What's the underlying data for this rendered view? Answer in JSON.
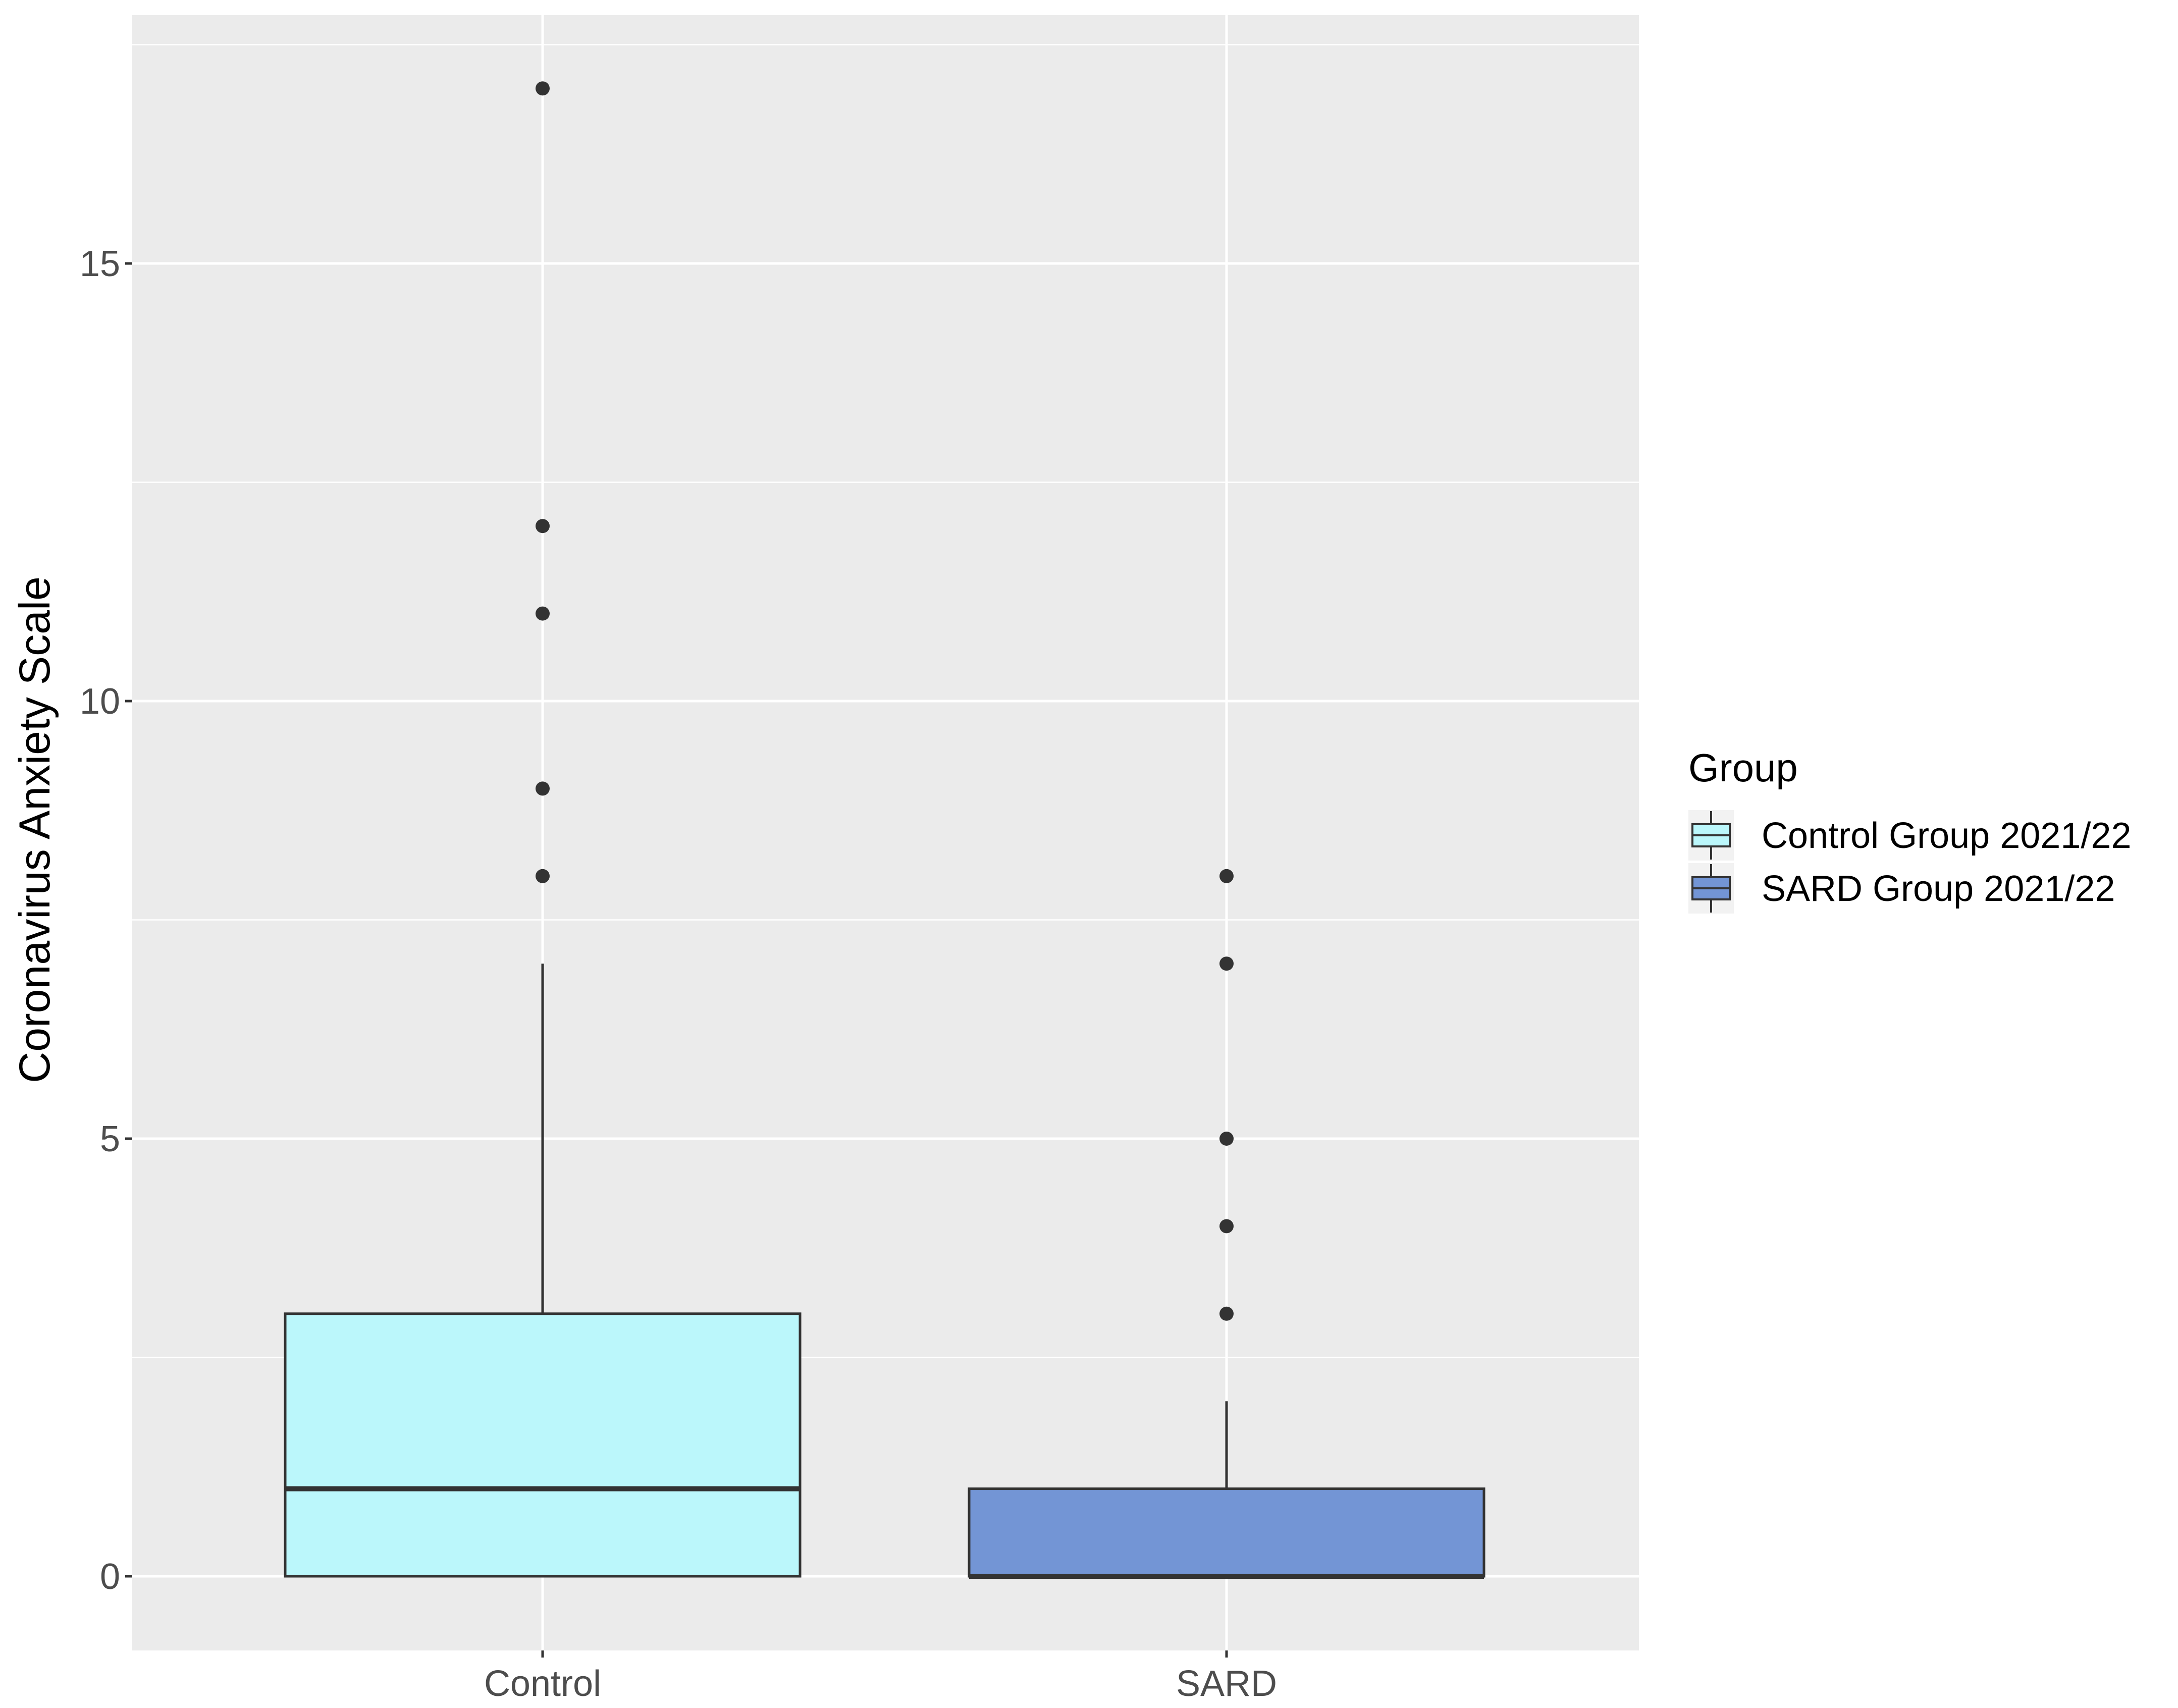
{
  "chart_data": {
    "type": "boxplot",
    "xlabel": "",
    "ylabel": "Coronavirus Anxiety Scale",
    "categories": [
      "Control",
      "SARD"
    ],
    "ylim": [
      -0.85,
      17.9
    ],
    "yticks": [
      0,
      5,
      10,
      15
    ],
    "grid": true,
    "legend": {
      "title": "Group",
      "placement": "right",
      "entries": [
        {
          "label": "Control Group 2021/22",
          "color": "#bbf7fb"
        },
        {
          "label": "SARD Group 2021/22",
          "color": "#7395d5"
        }
      ]
    },
    "series": [
      {
        "category": "Control",
        "name": "Control Group 2021/22",
        "color": "#bbf7fb",
        "q1": 0,
        "median": 1,
        "q3": 3,
        "whisker_low": 0,
        "whisker_high": 7,
        "outliers": [
          8,
          9,
          11,
          12,
          17
        ]
      },
      {
        "category": "SARD",
        "name": "SARD Group 2021/22",
        "color": "#7395d5",
        "q1": 0,
        "median": 0,
        "q3": 1,
        "whisker_low": 0,
        "whisker_high": 2,
        "outliers": [
          3,
          4,
          5,
          7,
          8
        ]
      }
    ]
  },
  "colors": {
    "panel_bg": "#ebebeb",
    "grid": "#ffffff",
    "box_outline": "#333333",
    "point": "#333333"
  }
}
